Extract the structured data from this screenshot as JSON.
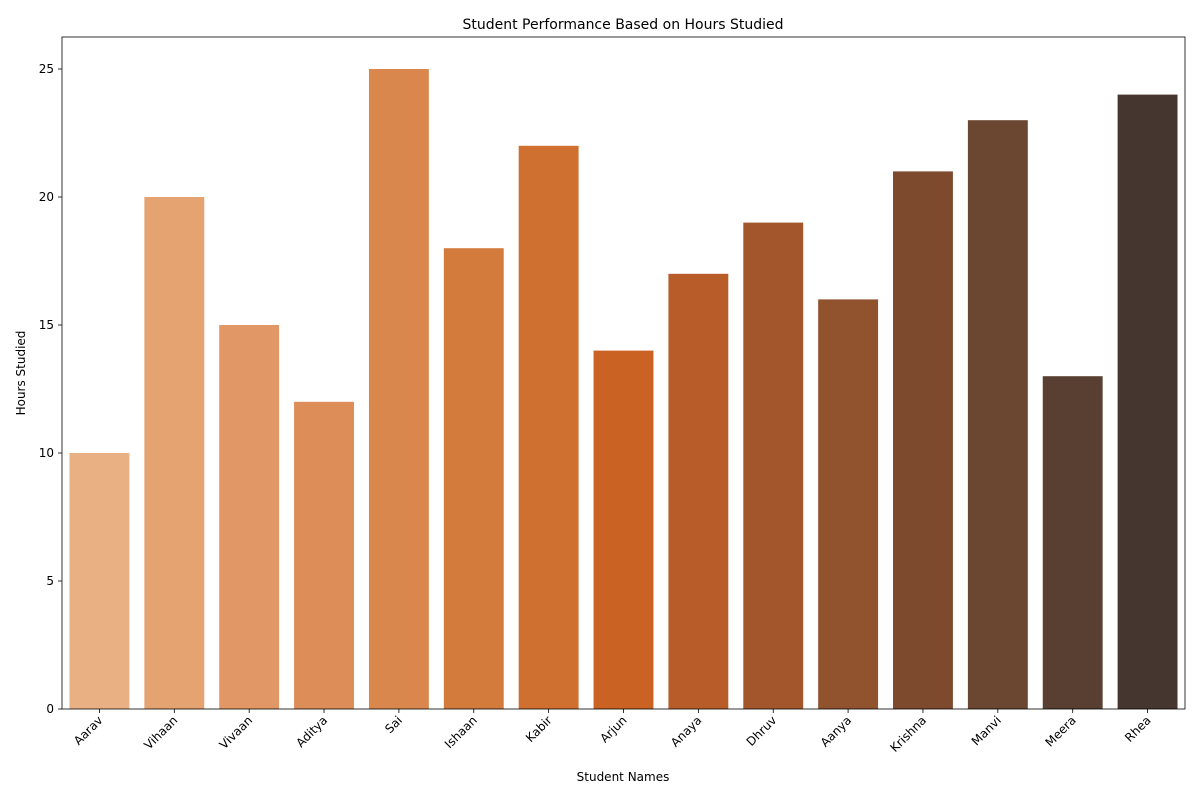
{
  "chart_data": {
    "type": "bar",
    "title": "Student Performance Based on Hours Studied",
    "xlabel": "Student Names",
    "ylabel": "Hours Studied",
    "categories": [
      "Aarav",
      "Vihaan",
      "Vivaan",
      "Aditya",
      "Sai",
      "Ishaan",
      "Kabir",
      "Arjun",
      "Anaya",
      "Dhruv",
      "Aanya",
      "Krishna",
      "Manvi",
      "Meera",
      "Rhea"
    ],
    "values": [
      10,
      20,
      15,
      12,
      25,
      18,
      22,
      14,
      17,
      19,
      16,
      21,
      23,
      13,
      24
    ],
    "colors": [
      "#e8b083",
      "#e5a371",
      "#e29866",
      "#dd8d58",
      "#d9874c",
      "#d37a3d",
      "#cf6f30",
      "#c96223",
      "#b85d2a",
      "#a3562b",
      "#91522e",
      "#7e4a2e",
      "#6b4630",
      "#583f31",
      "#45362f"
    ],
    "ylim": [
      0,
      26.25
    ],
    "yticks": [
      0,
      5,
      10,
      15,
      20,
      25
    ],
    "grid": false,
    "legend": "none"
  }
}
